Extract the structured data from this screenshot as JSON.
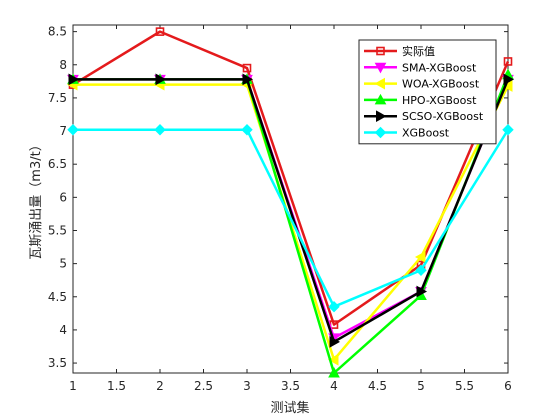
{
  "chart_data": {
    "type": "line",
    "title": "",
    "xlabel": "测试集",
    "ylabel": "瓦斯涌出量（m3/t）",
    "xlim": [
      1,
      6
    ],
    "ylim": [
      3.35,
      8.6
    ],
    "xticks": [
      "1",
      "1.5",
      "2",
      "2.5",
      "3",
      "3.5",
      "4",
      "4.5",
      "5",
      "5.5",
      "6"
    ],
    "yticks": [
      "3.5",
      "4",
      "4.5",
      "5",
      "5.5",
      "6",
      "6.5",
      "7",
      "7.5",
      "8",
      "8.5"
    ],
    "grid": false,
    "legend_position": "top-right",
    "x": [
      1,
      2,
      3,
      4,
      5,
      6
    ],
    "series": [
      {
        "name": "实际值",
        "color": "#e41a1c",
        "marker": "square",
        "values": [
          7.7,
          8.5,
          7.95,
          4.08,
          4.98,
          8.05
        ]
      },
      {
        "name": "SMA-XGBoost",
        "color": "#ff00ff",
        "marker": "triangle-down",
        "values": [
          7.78,
          7.78,
          7.78,
          3.88,
          4.58,
          7.78
        ]
      },
      {
        "name": "WOA-XGBoost",
        "color": "#ffff00",
        "marker": "triangle-left",
        "values": [
          7.7,
          7.7,
          7.7,
          3.55,
          5.1,
          7.68
        ]
      },
      {
        "name": "HPO-XGBoost",
        "color": "#00ff00",
        "marker": "triangle-up",
        "values": [
          7.78,
          7.78,
          7.78,
          3.35,
          4.52,
          7.85
        ]
      },
      {
        "name": "SCSO-XGBoost",
        "color": "#000000",
        "marker": "triangle-right",
        "values": [
          7.78,
          7.78,
          7.78,
          3.82,
          4.58,
          7.78
        ]
      },
      {
        "name": "XGBoost",
        "color": "#00ffff",
        "marker": "diamond",
        "values": [
          7.02,
          7.02,
          7.02,
          4.35,
          4.9,
          7.02
        ]
      }
    ]
  }
}
